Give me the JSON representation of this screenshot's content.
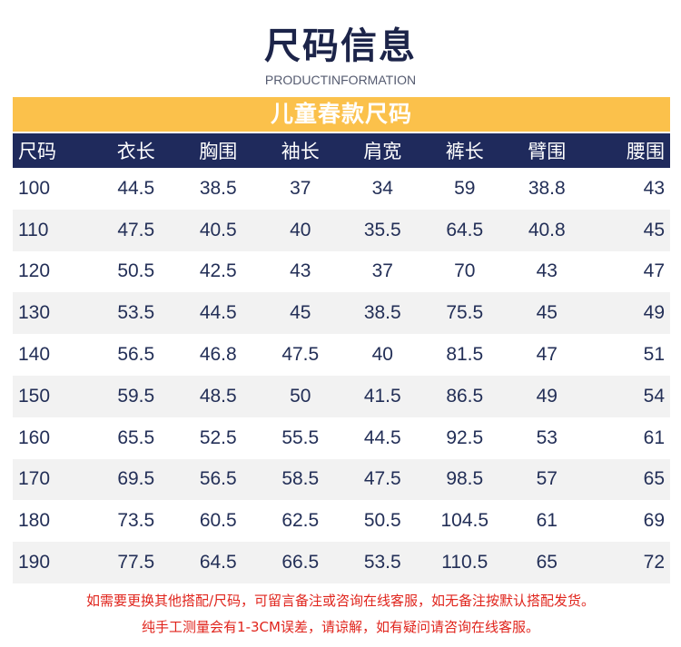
{
  "header": {
    "title": "尺码信息",
    "subtitle": "PRODUCTINFORMATION"
  },
  "banner": "儿童春款尺码",
  "table": {
    "columns": [
      "尺码",
      "衣长",
      "胸围",
      "袖长",
      "肩宽",
      "裤长",
      "臂围",
      "腰围"
    ],
    "rows": [
      [
        "100",
        "44.5",
        "38.5",
        "37",
        "34",
        "59",
        "38.8",
        "43"
      ],
      [
        "110",
        "47.5",
        "40.5",
        "40",
        "35.5",
        "64.5",
        "40.8",
        "45"
      ],
      [
        "120",
        "50.5",
        "42.5",
        "43",
        "37",
        "70",
        "43",
        "47"
      ],
      [
        "130",
        "53.5",
        "44.5",
        "45",
        "38.5",
        "75.5",
        "45",
        "49"
      ],
      [
        "140",
        "56.5",
        "46.8",
        "47.5",
        "40",
        "81.5",
        "47",
        "51"
      ],
      [
        "150",
        "59.5",
        "48.5",
        "50",
        "41.5",
        "86.5",
        "49",
        "54"
      ],
      [
        "160",
        "65.5",
        "52.5",
        "55.5",
        "44.5",
        "92.5",
        "53",
        "61"
      ],
      [
        "170",
        "69.5",
        "56.5",
        "58.5",
        "47.5",
        "98.5",
        "57",
        "65"
      ],
      [
        "180",
        "73.5",
        "60.5",
        "62.5",
        "50.5",
        "104.5",
        "61",
        "69"
      ],
      [
        "190",
        "77.5",
        "64.5",
        "66.5",
        "53.5",
        "110.5",
        "65",
        "72"
      ]
    ]
  },
  "notes": [
    "如需要更换其他搭配/尺码，可留言备注或咨询在线客服，如无备注按默认搭配发货。",
    "纯手工测量会有1-3CM误差，请谅解，如有疑问请咨询在线客服。"
  ],
  "colors": {
    "title": "#1c2449",
    "banner": "#fbc14b",
    "header_row": "#1f2a5c",
    "stripe": "#f2f2f2",
    "note": "#e0241c"
  }
}
